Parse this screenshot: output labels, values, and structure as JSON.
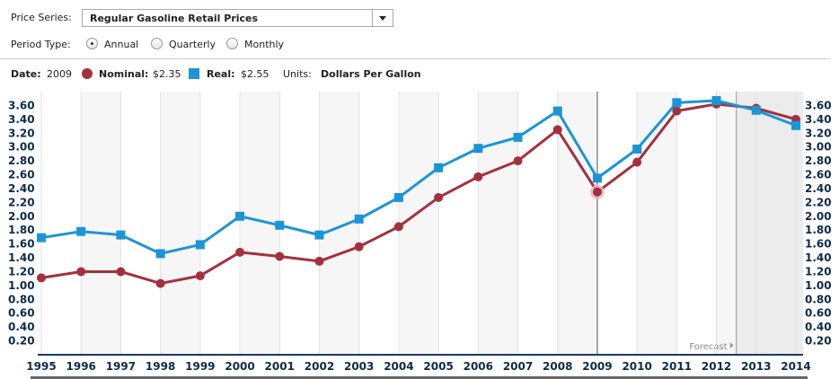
{
  "controls": {
    "series_label": "Price Series:",
    "series_value": "Regular Gasoline Retail Prices",
    "period_label": "Period Type:",
    "period_options": [
      "Annual",
      "Quarterly",
      "Monthly"
    ],
    "period_selected": "Annual"
  },
  "info": {
    "date_label": "Date:",
    "date_value": "2009",
    "nominal_label": "Nominal:",
    "nominal_value": "$2.35",
    "real_label": "Real:",
    "real_value": "$2.55",
    "units_label": "Units:",
    "units_value": "Dollars Per Gallon"
  },
  "colors": {
    "nominal": "#a4303e",
    "real": "#1b95d6",
    "axis_text": "#0d2b4a"
  },
  "chart_data": {
    "type": "line",
    "x": [
      "1995",
      "1996",
      "1997",
      "1998",
      "1999",
      "2000",
      "2001",
      "2002",
      "2003",
      "2004",
      "2005",
      "2006",
      "2007",
      "2008",
      "2009",
      "2010",
      "2011",
      "2012",
      "2013",
      "2014"
    ],
    "series": [
      {
        "name": "Nominal",
        "marker": "circle",
        "values": [
          1.11,
          1.2,
          1.2,
          1.03,
          1.14,
          1.48,
          1.42,
          1.35,
          1.56,
          1.85,
          2.27,
          2.57,
          2.8,
          3.25,
          2.35,
          2.78,
          3.52,
          3.62,
          3.56,
          3.4
        ]
      },
      {
        "name": "Real",
        "marker": "square",
        "values": [
          1.69,
          1.78,
          1.73,
          1.46,
          1.59,
          2.0,
          1.87,
          1.73,
          1.96,
          2.27,
          2.7,
          2.98,
          3.14,
          3.52,
          2.55,
          2.97,
          3.64,
          3.67,
          3.53,
          3.31
        ]
      }
    ],
    "y_ticks": [
      "3.60",
      "3.40",
      "3.20",
      "3.00",
      "2.80",
      "2.60",
      "2.40",
      "2.20",
      "2.00",
      "1.80",
      "1.60",
      "1.40",
      "1.20",
      "1.00",
      "0.80",
      "0.60",
      "0.40",
      "0.20"
    ],
    "ylim": [
      0,
      3.8
    ],
    "selected_year": "2009",
    "forecast_label": "Forecast",
    "forecast_start": "2013",
    "grid": true
  }
}
